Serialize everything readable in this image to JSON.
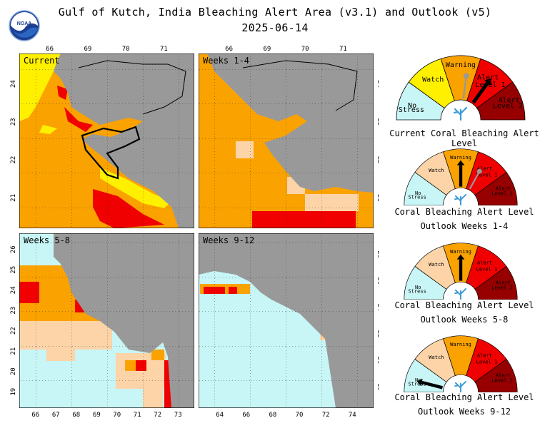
{
  "header": {
    "title_line1": "Gulf of Kutch, India Bleaching Alert Area (v3.1) and Outlook (v5)",
    "title_line2": "2025-06-14",
    "logo_text": "NOAA"
  },
  "colors": {
    "no_stress": "#c8f5f5",
    "watch_light": "#fcd4a8",
    "watch_yellow": "#fff000",
    "warning": "#faa200",
    "alert1": "#f00000",
    "alert2": "#960000",
    "land": "#999999",
    "coral": "#3a9ad9"
  },
  "panels": [
    {
      "label": "Current",
      "top_ticks": [
        "66",
        "69",
        "70",
        "71"
      ],
      "left_ticks": [
        "24",
        "23",
        "22",
        "21"
      ],
      "right_ticks": [],
      "bottom_ticks": []
    },
    {
      "label": "Weeks 1-4",
      "top_ticks": [
        "66",
        "69",
        "70",
        "71"
      ],
      "left_ticks": [],
      "right_ticks": [
        "24",
        "23",
        "22",
        "21"
      ],
      "bottom_ticks": []
    },
    {
      "label": "Weeks 5-8",
      "top_ticks": [],
      "left_ticks": [
        "26",
        "25",
        "24",
        "23",
        "22",
        "21",
        "20",
        "19"
      ],
      "right_ticks": [],
      "bottom_ticks": [
        "66",
        "67",
        "68",
        "69",
        "70",
        "71",
        "72",
        "73"
      ]
    },
    {
      "label": "Weeks 9-12",
      "top_ticks": [],
      "left_ticks": [],
      "right_ticks": [
        "28",
        "26",
        "24",
        "22",
        "20",
        "18"
      ],
      "bottom_ticks": [
        "64",
        "66",
        "68",
        "70",
        "72",
        "74"
      ]
    }
  ],
  "gauge_labels": {
    "no_stress": [
      "No",
      "Stress"
    ],
    "watch": "Watch",
    "warning": "Warning",
    "alert1": [
      "Alert",
      "Level 1"
    ],
    "alert2": [
      "Alert",
      "Level 2"
    ]
  },
  "gauges": [
    {
      "caption1": "Current Coral Bleaching Alert Level",
      "caption2": "",
      "style": "current",
      "level": 3.5,
      "prev_level": 2.7
    },
    {
      "caption1": "Coral Bleaching Alert Level",
      "caption2": "Outlook Weeks 1-4",
      "style": "outlook",
      "level": 2.5,
      "prev_level": 3.3
    },
    {
      "caption1": "Coral Bleaching Alert Level",
      "caption2": "Outlook Weeks 5-8",
      "style": "outlook",
      "level": 2.5,
      "prev_level": null
    },
    {
      "caption1": "Coral Bleaching Alert Level",
      "caption2": "Outlook Weeks 9-12",
      "style": "outlook",
      "level": 0.4,
      "prev_level": null
    }
  ]
}
